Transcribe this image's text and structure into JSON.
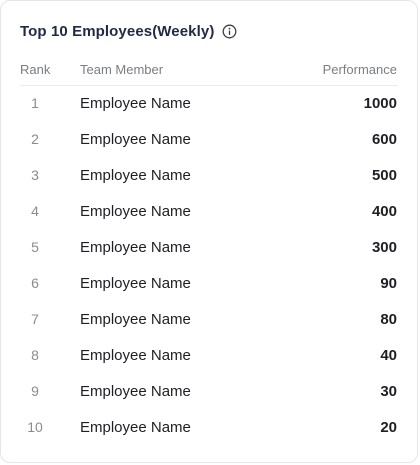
{
  "card": {
    "title": "Top 10 Employees(Weekly)",
    "info_icon": "info-circle-icon"
  },
  "table": {
    "headers": {
      "rank": "Rank",
      "member": "Team Member",
      "performance": "Performance"
    },
    "rows": [
      {
        "rank": "1",
        "name": "Employee Name",
        "performance": "1000"
      },
      {
        "rank": "2",
        "name": "Employee Name",
        "performance": "600"
      },
      {
        "rank": "3",
        "name": "Employee Name",
        "performance": "500"
      },
      {
        "rank": "4",
        "name": "Employee Name",
        "performance": "400"
      },
      {
        "rank": "5",
        "name": "Employee Name",
        "performance": "300"
      },
      {
        "rank": "6",
        "name": "Employee Name",
        "performance": "90"
      },
      {
        "rank": "7",
        "name": "Employee Name",
        "performance": "80"
      },
      {
        "rank": "8",
        "name": "Employee Name",
        "performance": "40"
      },
      {
        "rank": "9",
        "name": "Employee Name",
        "performance": "30"
      },
      {
        "rank": "10",
        "name": "Employee Name",
        "performance": "20"
      }
    ]
  },
  "colors": {
    "title": "#1f2a44",
    "header_text": "#7a7d85",
    "rank_text": "#8a8c92",
    "body_text": "#1d1f24",
    "border": "#e6e6e9"
  }
}
